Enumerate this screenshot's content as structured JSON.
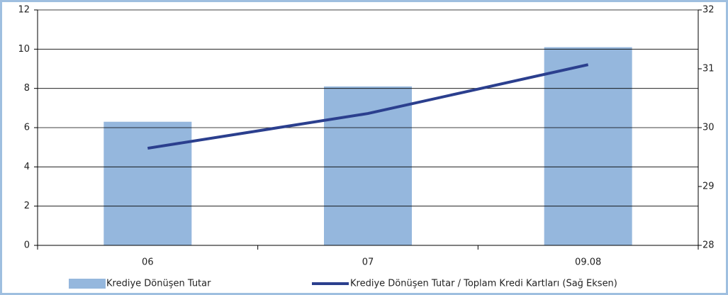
{
  "chart_data": {
    "type": "bar",
    "categories": [
      "06",
      "07",
      "09.08"
    ],
    "series": [
      {
        "name": "Krediye Dönüşen Tutar",
        "type": "bar",
        "color": "#95b7dd",
        "values": [
          6.3,
          8.1,
          10.1
        ]
      },
      {
        "name": "Krediye Dönüşen Tutar / Toplam Kredi Kartları (Sağ Eksen)",
        "type": "line",
        "axis": "y2",
        "color": "#2b3f8e",
        "values": [
          29.65,
          30.24,
          31.07
        ]
      }
    ],
    "ylim": [
      0,
      12
    ],
    "yticks": [
      0,
      2,
      4,
      6,
      8,
      10,
      12
    ],
    "y2lim": [
      28,
      32
    ],
    "y2ticks": [
      28,
      29,
      30,
      31,
      32
    ],
    "grid": true,
    "legend": "bottom"
  }
}
